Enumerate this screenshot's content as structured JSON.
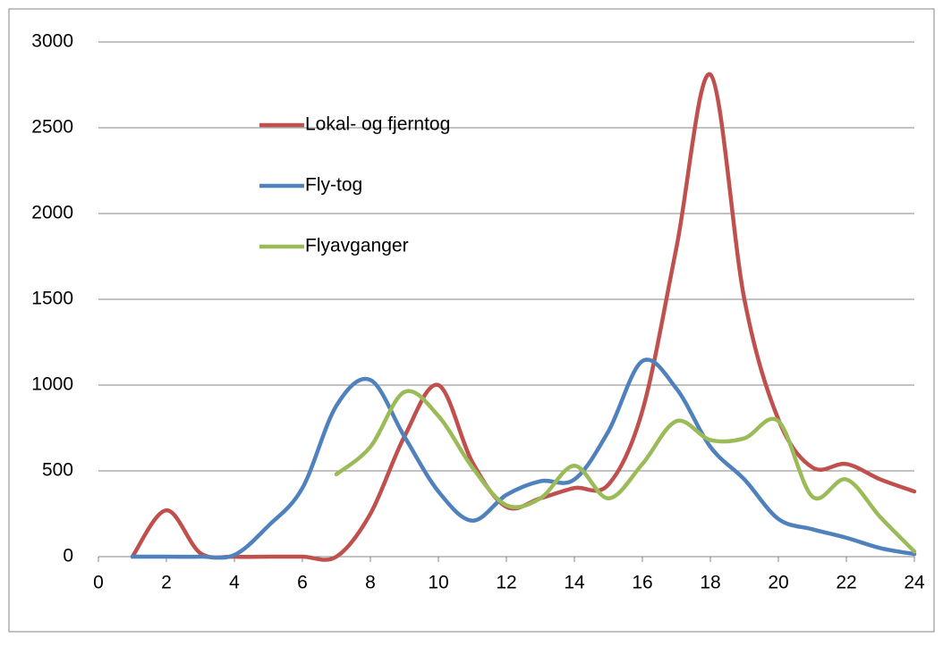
{
  "chart_data": {
    "type": "line",
    "x": [
      1,
      2,
      3,
      4,
      5,
      6,
      7,
      8,
      9,
      10,
      11,
      12,
      13,
      14,
      15,
      16,
      17,
      18,
      19,
      20,
      21,
      22,
      23,
      24
    ],
    "series": [
      {
        "name": "Lokal- og fjerntog",
        "color": "#c0504d",
        "values": [
          0,
          270,
          20,
          0,
          0,
          0,
          0,
          250,
          700,
          1000,
          550,
          290,
          340,
          400,
          420,
          850,
          1800,
          2810,
          1500,
          800,
          520,
          540,
          450,
          380
        ]
      },
      {
        "name": "Fly-tog",
        "color": "#4f81bd",
        "values": [
          0,
          0,
          0,
          10,
          180,
          400,
          880,
          1030,
          700,
          380,
          210,
          360,
          440,
          450,
          730,
          1140,
          980,
          640,
          450,
          220,
          160,
          110,
          50,
          15
        ]
      },
      {
        "name": "Flyavganger",
        "color": "#9bbb59",
        "values": [
          null,
          null,
          null,
          null,
          null,
          null,
          480,
          640,
          960,
          820,
          520,
          300,
          340,
          530,
          340,
          540,
          790,
          680,
          690,
          790,
          350,
          450,
          230,
          30
        ]
      }
    ],
    "xlim": [
      0,
      24
    ],
    "xticks": [
      0,
      2,
      4,
      6,
      8,
      10,
      12,
      14,
      16,
      18,
      20,
      22,
      24
    ],
    "ylim": [
      0,
      3000
    ],
    "yticks": [
      0,
      500,
      1000,
      1500,
      2000,
      2500,
      3000
    ],
    "grid": true,
    "smooth": true
  }
}
